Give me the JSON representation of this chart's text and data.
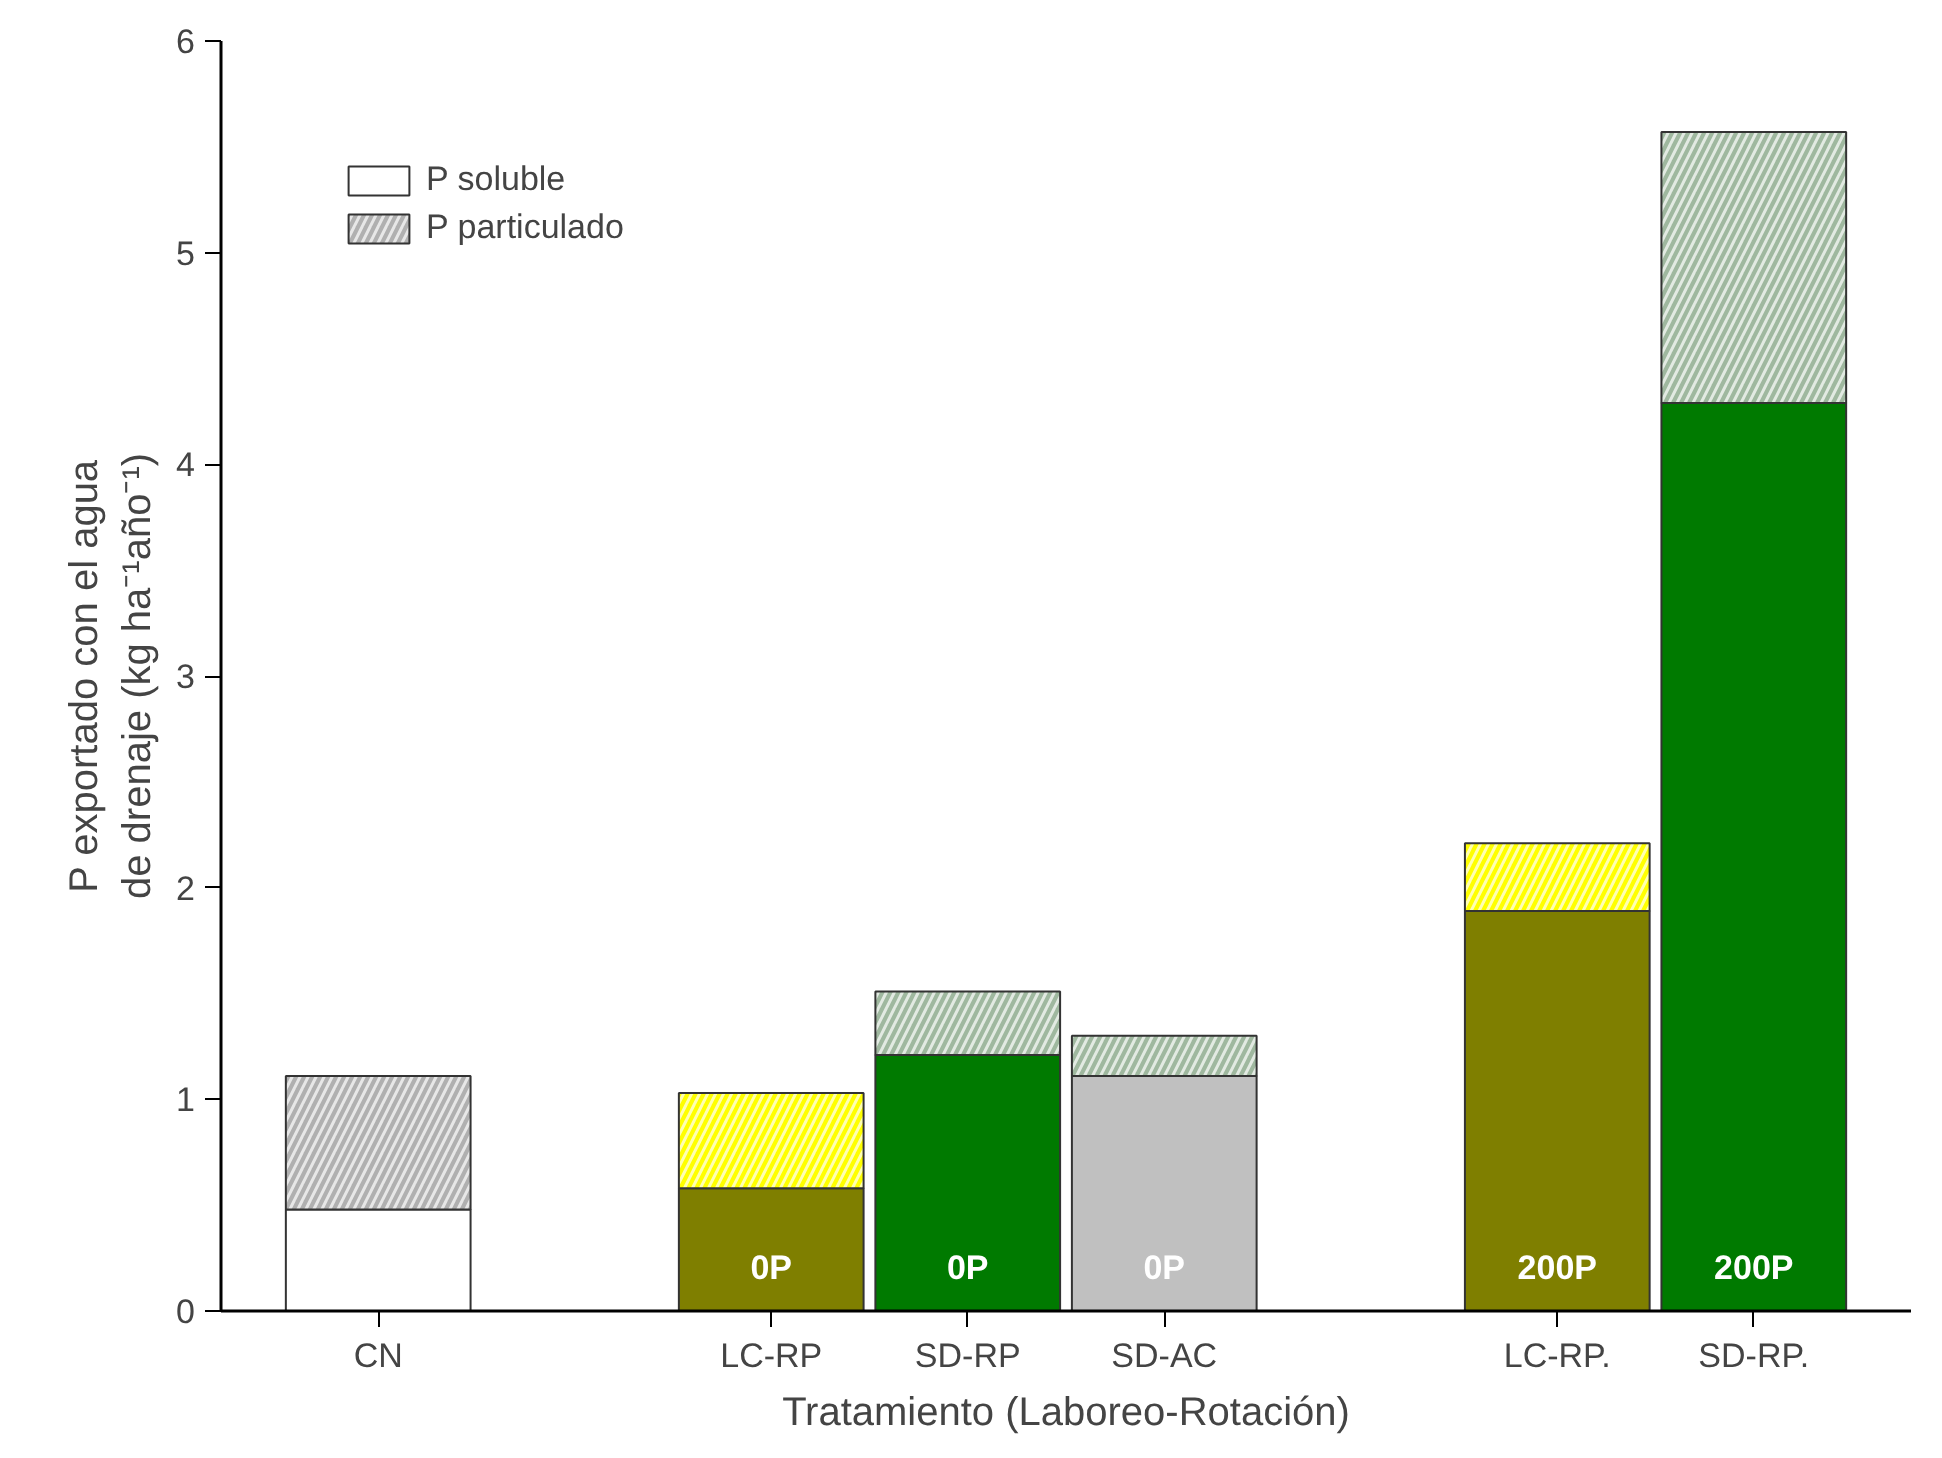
{
  "chart_data": {
    "type": "bar",
    "stacked": true,
    "xlabel": "Tratamiento (Laboreo-Rotación)",
    "ylabel": "P exportado con el agua\nde drenaje (kg ha⁻¹año⁻¹)",
    "categories": [
      "CN",
      null,
      "LC-RP",
      "SD-RP",
      "SD-AC",
      null,
      "LC-RP.",
      "SD-RP."
    ],
    "series": [
      {
        "name": "P soluble",
        "color": "#ffffff",
        "colors": [
          "#ffffff",
          null,
          "#7f7f00",
          "#007a00",
          "#c0c0c0",
          null,
          "#7f7f00",
          "#007a00"
        ],
        "values": [
          0.48,
          null,
          0.58,
          1.21,
          1.11,
          null,
          1.89,
          4.29
        ]
      },
      {
        "name": "P particulado",
        "color": "#b0b0b0",
        "colors": [
          "#b0b0b0",
          null,
          "#ffff00",
          "#9fb89f",
          "#9fb89f",
          null,
          "#ffff00",
          "#9fb89f"
        ],
        "values": [
          0.63,
          null,
          0.45,
          0.3,
          0.19,
          null,
          0.32,
          1.28
        ]
      }
    ],
    "annotations": [
      {
        "text": "0P",
        "x": "LC-RP",
        "y": 0
      },
      {
        "text": "0P",
        "x": "SD-RP",
        "y": 0
      },
      {
        "text": "0P",
        "x": "SD-AC",
        "y": 0
      },
      {
        "text": "200P",
        "x": "LC-RP.",
        "y": 0
      },
      {
        "text": "200P",
        "x": "SD-RP.",
        "y": 0
      }
    ],
    "ylim": [
      0,
      6
    ],
    "yticks": [
      0,
      1,
      2,
      3,
      4,
      5,
      6
    ],
    "grid": false,
    "legend": "top left"
  }
}
